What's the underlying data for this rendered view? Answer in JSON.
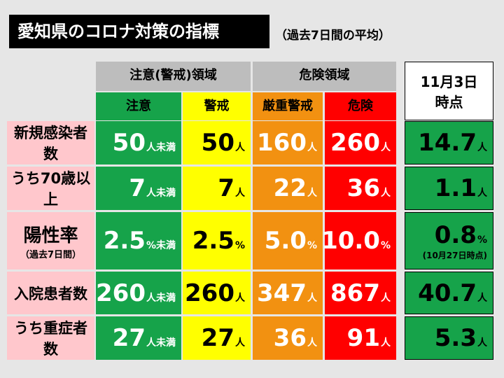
{
  "title": "愛知県のコロナ対策の指標",
  "subtitle": "（過去7日間の平均）",
  "headers": {
    "caution_zone": "注意(警戒)領域",
    "danger_zone": "危険領域",
    "caution": "注意",
    "alert": "警戒",
    "severe_alert": "厳重警戒",
    "danger": "危険",
    "date_line1": "11月3日",
    "date_line2": "時点"
  },
  "rows": [
    {
      "label": "新規感染者数",
      "sublabel": "",
      "caution": {
        "num": "50",
        "unit": "人未満"
      },
      "alert": {
        "num": "50",
        "unit": "人"
      },
      "severe": {
        "num": "160",
        "unit": "人"
      },
      "danger": {
        "num": "260",
        "unit": "人"
      },
      "current": {
        "num": "14.7",
        "unit": "人"
      },
      "current_note": ""
    },
    {
      "label": "うち70歳以上",
      "sublabel": "",
      "caution": {
        "num": "7",
        "unit": "人未満"
      },
      "alert": {
        "num": "7",
        "unit": "人"
      },
      "severe": {
        "num": "22",
        "unit": "人"
      },
      "danger": {
        "num": "36",
        "unit": "人"
      },
      "current": {
        "num": "1.1",
        "unit": "人"
      },
      "current_note": ""
    },
    {
      "label": "陽性率",
      "sublabel": "（過去7日間）",
      "caution": {
        "num": "2.5",
        "unit": "%未満"
      },
      "alert": {
        "num": "2.5",
        "unit": "%"
      },
      "severe": {
        "num": "5.0",
        "unit": "%"
      },
      "danger": {
        "num": "10.0",
        "unit": "%"
      },
      "current": {
        "num": "0.8",
        "unit": "%"
      },
      "current_note": "(10月27日時点)"
    },
    {
      "label": "入院患者数",
      "sublabel": "",
      "caution": {
        "num": "260",
        "unit": "人未満"
      },
      "alert": {
        "num": "260",
        "unit": "人"
      },
      "severe": {
        "num": "347",
        "unit": "人"
      },
      "danger": {
        "num": "867",
        "unit": "人"
      },
      "current": {
        "num": "40.7",
        "unit": "人"
      },
      "current_note": ""
    },
    {
      "label": "うち重症者数",
      "sublabel": "",
      "caution": {
        "num": "27",
        "unit": "人未満"
      },
      "alert": {
        "num": "27",
        "unit": "人"
      },
      "severe": {
        "num": "36",
        "unit": "人"
      },
      "danger": {
        "num": "91",
        "unit": "人"
      },
      "current": {
        "num": "5.3",
        "unit": "人"
      },
      "current_note": ""
    }
  ]
}
